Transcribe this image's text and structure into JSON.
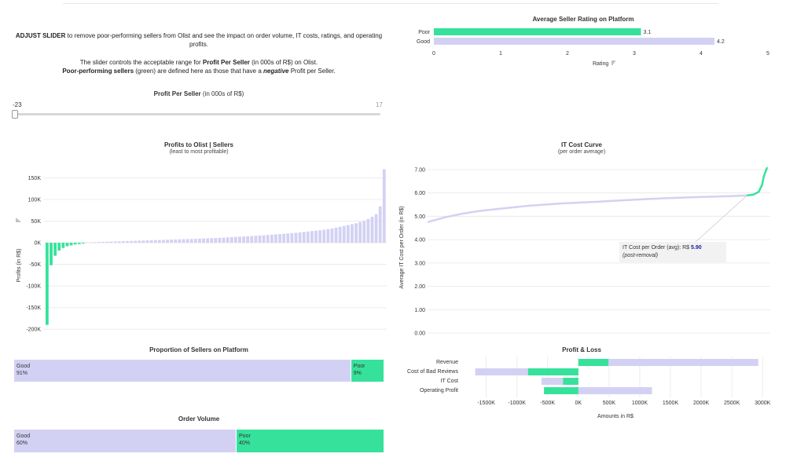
{
  "intro": {
    "adjust_label": "ADJUST SLIDER",
    "adjust_rest": " to remove poor-performing sellers from Olist and see the impact on order volume, IT costs, ratings, and operating profits.",
    "line2_a": "The slider controls the acceptable range for ",
    "line2_b": "Profit Per Seller",
    "line2_c": " (in 000s of R$) on Olist.",
    "line3_a": "Poor-performing sellers",
    "line3_b": " (green) are defined here as those that have a ",
    "line3_c": "negative",
    "line3_d": " Profit per Seller."
  },
  "slider": {
    "title_bold": "Profit Per Seller",
    "title_rest": " (in 000s of R$)",
    "min_label": "-23",
    "max_label": "17",
    "min": -23,
    "max": 17,
    "value": -23
  },
  "colors": {
    "good": "#d3d1f3",
    "poor": "#36e29b",
    "accent": "#1a1aa6"
  },
  "chart_data": [
    {
      "id": "rating",
      "type": "bar",
      "orientation": "horizontal",
      "title": "Average Seller Rating on Platform",
      "categories": [
        "Poor",
        "Good"
      ],
      "values": [
        3.1,
        4.2
      ],
      "value_labels": [
        "3.1",
        "4.2"
      ],
      "xlabel": "Rating",
      "xlim": [
        0,
        5
      ],
      "xticks": [
        "0",
        "1",
        "2",
        "3",
        "4",
        "5"
      ]
    },
    {
      "id": "profits",
      "type": "bar",
      "title": "Profits to Olist | Sellers",
      "subtitle": "(least to most profitable)",
      "ylabel": "Profits (in R$)",
      "ylim": [
        -205000,
        180000
      ],
      "yticks": [
        "150K",
        "100K",
        "50K",
        "0K",
        "-50K",
        "-100K",
        "-150K",
        "-200K"
      ],
      "ytick_values": [
        150000,
        100000,
        50000,
        0,
        -50000,
        -100000,
        -150000,
        -200000
      ],
      "poor_values": [
        -190000,
        -52000,
        -30000,
        -18000,
        -12000,
        -8000,
        -6000,
        -4000,
        -3000,
        -2000
      ],
      "good_values": [
        1000,
        1300,
        1600,
        1900,
        2200,
        2500,
        2800,
        3100,
        3400,
        3700,
        4000,
        4300,
        4600,
        4900,
        5200,
        5500,
        5800,
        6100,
        6400,
        6700,
        7000,
        7300,
        7600,
        7900,
        8200,
        8500,
        8800,
        9100,
        9500,
        9900,
        10300,
        10700,
        11100,
        11500,
        12000,
        12500,
        13000,
        13500,
        14000,
        14500,
        15000,
        15600,
        16200,
        16800,
        17400,
        18000,
        18700,
        19400,
        20100,
        20800,
        21600,
        22400,
        23200,
        24000,
        25000,
        26000,
        27000,
        28000,
        29000,
        30000,
        31500,
        33000,
        35000,
        37000,
        39000,
        41000,
        43000,
        45000,
        48000,
        51000,
        55000,
        60000,
        66000,
        84000,
        170000
      ]
    },
    {
      "id": "itcost",
      "type": "line",
      "title": "IT Cost Curve",
      "subtitle": "(per order average)",
      "ylabel": "Average IT Cost per Order (in R$)",
      "ylim": [
        0,
        7.2
      ],
      "yticks": [
        "7.00",
        "6.00",
        "5.00",
        "4.00",
        "3.00",
        "2.00",
        "1.00",
        "0.00"
      ],
      "ytick_values": [
        7,
        6,
        5,
        4,
        3,
        2,
        1,
        0
      ],
      "good_curve": [
        [
          0,
          4.75
        ],
        [
          0.05,
          4.95
        ],
        [
          0.1,
          5.1
        ],
        [
          0.15,
          5.22
        ],
        [
          0.2,
          5.3
        ],
        [
          0.3,
          5.45
        ],
        [
          0.4,
          5.55
        ],
        [
          0.5,
          5.62
        ],
        [
          0.6,
          5.7
        ],
        [
          0.7,
          5.77
        ],
        [
          0.8,
          5.82
        ],
        [
          0.9,
          5.86
        ],
        [
          0.95,
          5.89
        ]
      ],
      "poor_curve": [
        [
          0.95,
          5.89
        ],
        [
          0.97,
          5.93
        ],
        [
          0.985,
          6.05
        ],
        [
          0.995,
          6.35
        ],
        [
          1.0,
          6.7
        ],
        [
          1.01,
          7.1
        ]
      ],
      "annotation": {
        "label": "IT Cost per Order (avg): R$ ",
        "value": "5.90",
        "note": "(post-removal)"
      }
    },
    {
      "id": "proportion",
      "type": "bar",
      "stacked": true,
      "title": "Proportion of Sellers on Platform",
      "series": [
        {
          "name": "Good",
          "value": 91,
          "label": "91%"
        },
        {
          "name": "Poor",
          "value": 9,
          "label": "9%"
        }
      ]
    },
    {
      "id": "volume",
      "type": "bar",
      "stacked": true,
      "title": "Order Volume",
      "series": [
        {
          "name": "Good",
          "value": 60,
          "label": "60%"
        },
        {
          "name": "Poor",
          "value": 40,
          "label": "40%"
        }
      ]
    },
    {
      "id": "pnl",
      "type": "bar",
      "orientation": "horizontal",
      "title": "Profit & Loss",
      "xlabel": "Amounts in R$",
      "xlim": [
        -1700000,
        3100000
      ],
      "xticks": [
        "-1500K",
        "-1000K",
        "-500K",
        "0K",
        "500K",
        "1000K",
        "1500K",
        "2000K",
        "2500K",
        "3000K"
      ],
      "xtick_values": [
        -1500000,
        -1000000,
        -500000,
        0,
        500000,
        1000000,
        1500000,
        2000000,
        2500000,
        3000000
      ],
      "categories": [
        "Revenue",
        "Cost of Bad Reviews",
        "IT Cost",
        "Operating Profit"
      ],
      "good": [
        [
          0,
          2930000
        ],
        [
          -1680000,
          -820000
        ],
        [
          -600000,
          -250000
        ],
        [
          0,
          1200000
        ]
      ],
      "poor": [
        [
          0,
          490000
        ],
        [
          -820000,
          0
        ],
        [
          -250000,
          0
        ],
        [
          -560000,
          0
        ]
      ]
    }
  ]
}
